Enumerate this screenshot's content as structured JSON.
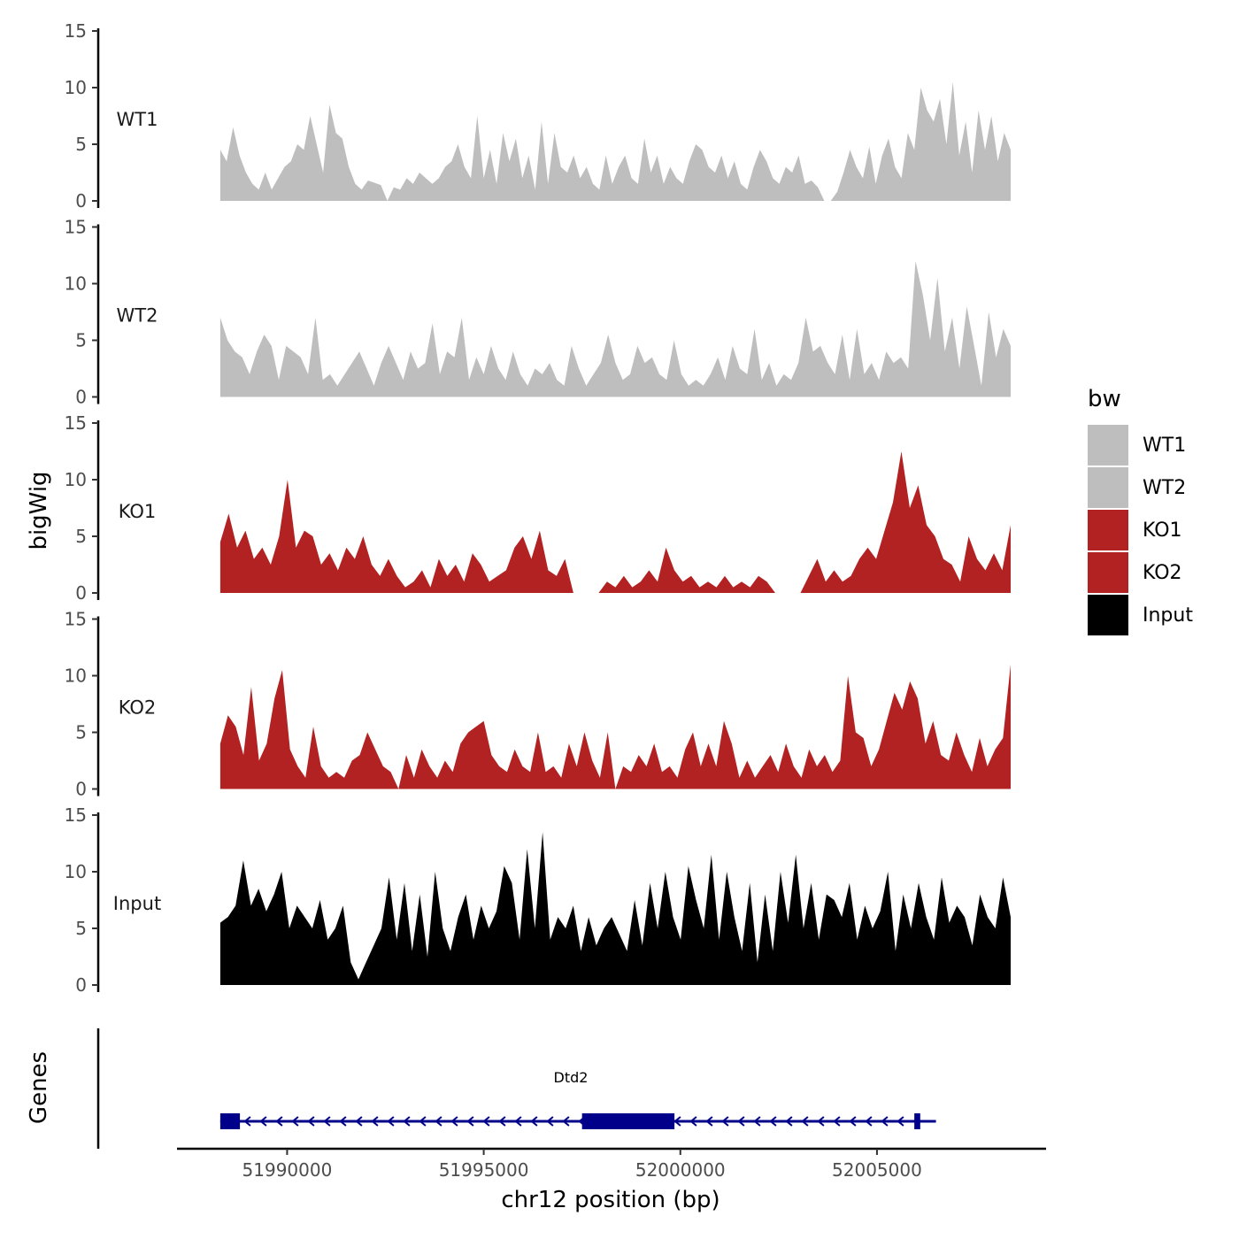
{
  "chart_data": {
    "type": "area",
    "y_title": "bigWig",
    "genes_title": "Genes",
    "x_title": "chr12 position (bp)",
    "x_range": [
      51987200,
      52009300
    ],
    "data_range": [
      51988300,
      52008400
    ],
    "x_ticks": [
      51990000,
      51995000,
      52000000,
      52005000
    ],
    "x_tick_labels": [
      "51990000",
      "51995000",
      "52000000",
      "52005000"
    ],
    "ylim": [
      0,
      15
    ],
    "y_ticks": [
      0,
      5,
      10,
      15
    ],
    "y_tick_labels": [
      "0",
      "5",
      "10",
      "15"
    ],
    "legend": {
      "title": "bw",
      "entries": [
        {
          "label": "WT1",
          "color": "#bebebe"
        },
        {
          "label": "WT2",
          "color": "#bebebe"
        },
        {
          "label": "KO1",
          "color": "#b22222"
        },
        {
          "label": "KO2",
          "color": "#b22222"
        },
        {
          "label": "Input",
          "color": "#000000"
        }
      ]
    },
    "series": [
      {
        "name": "WT1",
        "color": "#bebebe",
        "values": [
          4.5,
          3.5,
          6.5,
          4,
          2.5,
          1.5,
          1,
          2.5,
          1,
          2,
          3,
          3.5,
          5,
          4.5,
          7.5,
          5,
          2.5,
          8.5,
          6,
          5.5,
          3,
          1.5,
          1,
          1.8,
          1.6,
          1.4,
          0,
          1.2,
          1,
          2,
          1.5,
          2.5,
          2,
          1.5,
          2,
          3,
          3.5,
          5,
          3,
          2,
          7.5,
          2,
          4.5,
          1.5,
          6,
          3.5,
          5.5,
          2,
          4,
          1,
          7,
          1.5,
          6,
          3,
          2.5,
          4,
          2,
          3,
          1.5,
          1,
          4,
          1.5,
          3,
          4,
          2,
          1.5,
          5.5,
          2.5,
          4,
          1.5,
          3,
          2,
          1.5,
          3.5,
          5,
          4.5,
          3,
          2.5,
          4,
          2,
          3.5,
          1.5,
          1,
          3,
          4.5,
          3.5,
          2,
          1.5,
          3,
          2.5,
          4,
          1.5,
          1.8,
          1.2,
          0,
          0,
          0.8,
          2.5,
          4.5,
          3,
          2,
          4.8,
          1.5,
          4,
          5.5,
          3,
          2,
          6,
          4.5,
          10,
          8,
          7,
          9,
          5,
          10.5,
          4,
          7,
          2.5,
          8,
          4.5,
          7.5,
          3.5,
          6,
          4.5
        ]
      },
      {
        "name": "WT2",
        "color": "#bebebe",
        "values": [
          7,
          5,
          4,
          3.5,
          2,
          4,
          5.5,
          4.5,
          1.5,
          4.5,
          4,
          3.5,
          2,
          7,
          1.5,
          2,
          1,
          2,
          3,
          4,
          2.5,
          1,
          3,
          4.5,
          3,
          1.5,
          4,
          2.5,
          3,
          6.5,
          2,
          4,
          3.5,
          7,
          1.5,
          3.5,
          2,
          4.5,
          2.5,
          1.5,
          4,
          2,
          1,
          2.5,
          2,
          3,
          1.5,
          1,
          4.5,
          2.5,
          1,
          2,
          3,
          5.5,
          3,
          1.5,
          2,
          4.5,
          3,
          3.5,
          2,
          1.5,
          5,
          2,
          1,
          1.5,
          1,
          2,
          3.5,
          1.5,
          4.5,
          2.5,
          2,
          6,
          1.5,
          3,
          1,
          2,
          1.5,
          3,
          7,
          4,
          4.5,
          3,
          2,
          5.5,
          1.5,
          6,
          2,
          3,
          1.5,
          4,
          3,
          3.5,
          2.5,
          12,
          9,
          5,
          10.5,
          4,
          7,
          2.5,
          8,
          4.5,
          1,
          7.5,
          3.5,
          6,
          4.5
        ]
      },
      {
        "name": "KO1",
        "color": "#b22222",
        "values": [
          4.5,
          7,
          4,
          5.5,
          3,
          4,
          2.5,
          5,
          10,
          4,
          5.5,
          5,
          2.5,
          3.5,
          2,
          4,
          3,
          5,
          2.5,
          1.5,
          3,
          1.5,
          0.5,
          1,
          2,
          0.5,
          3,
          1.5,
          2.5,
          1,
          3.5,
          2.5,
          1,
          1.5,
          2,
          4,
          5,
          3,
          5.5,
          2,
          1.5,
          3,
          0,
          0,
          0,
          0,
          1,
          0.5,
          1.5,
          0.5,
          1,
          2,
          1,
          4,
          2,
          1,
          1.5,
          0.5,
          1,
          0.5,
          1.5,
          0.5,
          1,
          0.5,
          1.5,
          1,
          0,
          0,
          0,
          0,
          1.5,
          3,
          1,
          2,
          1,
          1.5,
          3,
          4,
          3,
          5.5,
          8,
          12.5,
          7.5,
          9.5,
          6,
          5,
          3,
          2.5,
          1,
          5,
          3,
          2,
          3.5,
          2,
          6
        ]
      },
      {
        "name": "KO2",
        "color": "#b22222",
        "values": [
          4,
          6.5,
          5.5,
          3,
          9,
          2.5,
          4,
          8,
          10.5,
          3.5,
          2,
          1,
          5.5,
          2,
          1,
          1.5,
          1,
          2.5,
          3,
          5,
          3.5,
          2,
          1.5,
          0,
          3,
          1,
          3.5,
          2,
          1,
          2.5,
          1.5,
          4,
          5,
          5.5,
          6,
          3,
          2,
          1.5,
          3.5,
          2,
          1.5,
          5,
          1.5,
          2,
          1,
          4,
          2,
          5,
          2.5,
          1,
          5,
          0,
          2,
          1.5,
          3,
          2,
          4,
          1.5,
          2,
          1,
          3.5,
          5,
          2,
          4,
          2,
          6,
          4,
          1,
          2.5,
          1,
          2,
          3,
          1.5,
          4,
          2,
          1,
          3.5,
          2,
          3,
          1.5,
          2.5,
          10,
          5,
          4.5,
          2,
          3.5,
          6,
          8.5,
          7,
          9.5,
          8,
          4,
          6,
          3,
          2.5,
          5,
          3,
          1.5,
          4.5,
          2,
          3.5,
          4.5,
          11
        ]
      },
      {
        "name": "Input",
        "color": "#000000",
        "values": [
          5.5,
          6,
          7,
          11,
          7,
          8.5,
          6.5,
          8,
          10,
          5,
          7,
          6,
          5,
          7.5,
          4,
          5,
          7,
          2,
          0.5,
          2,
          3.5,
          5,
          9.5,
          4,
          9,
          3,
          8,
          2.5,
          10,
          5,
          3,
          6,
          8,
          4,
          7,
          5,
          6.5,
          10.5,
          9,
          4,
          12,
          5,
          13.5,
          4,
          6,
          5,
          7,
          3,
          6,
          3.5,
          5,
          6,
          4.5,
          3,
          7.5,
          3.5,
          9,
          5,
          10,
          6,
          4,
          10.5,
          7.5,
          5,
          11.5,
          4,
          10,
          6,
          3,
          9,
          2,
          8,
          3,
          10,
          5.5,
          11.5,
          5,
          9,
          4,
          8,
          7.5,
          6,
          9,
          4,
          7,
          5,
          6.5,
          10,
          3,
          8,
          5,
          9,
          6,
          4,
          9.5,
          5.5,
          7,
          6,
          3.5,
          8,
          6,
          5,
          9.5,
          6
        ]
      }
    ],
    "gene": {
      "name": "Dtd2",
      "start": 51988300,
      "end": 52006500,
      "strand": "-",
      "exons": [
        [
          51988300,
          51988800
        ],
        [
          51997500,
          51999850
        ],
        [
          52005950,
          52006100
        ]
      ],
      "color": "#00008b"
    }
  }
}
